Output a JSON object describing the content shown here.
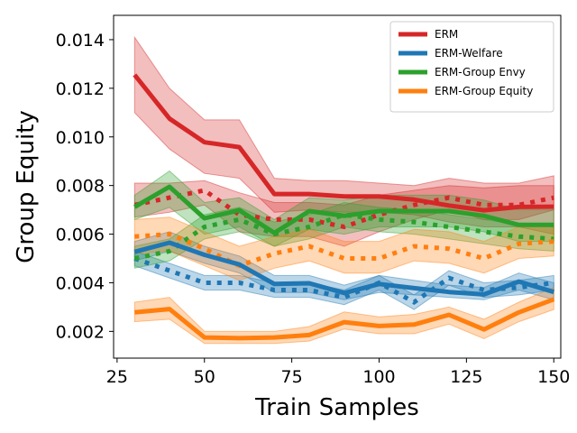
{
  "chart_data": {
    "type": "line",
    "xlabel": "Train Samples",
    "ylabel": "Group Equity",
    "xlim": [
      24,
      152
    ],
    "ylim": [
      0.0009,
      0.015
    ],
    "x_ticks": [
      25,
      50,
      75,
      100,
      125,
      150
    ],
    "x_tick_labels": [
      "25",
      "50",
      "75",
      "100",
      "125",
      "150"
    ],
    "y_ticks": [
      0.002,
      0.004,
      0.006,
      0.008,
      0.01,
      0.012,
      0.014
    ],
    "y_tick_labels": [
      "0.002",
      "0.004",
      "0.006",
      "0.008",
      "0.010",
      "0.012",
      "0.014"
    ],
    "grid": false,
    "legend_position": "top-right",
    "x": [
      30,
      40,
      50,
      60,
      70,
      80,
      90,
      100,
      110,
      120,
      130,
      140,
      150
    ],
    "series": [
      {
        "name": "ERM",
        "color": "#d62728",
        "solid": [
          0.01255,
          0.01075,
          0.00978,
          0.00958,
          0.00765,
          0.00765,
          0.00755,
          0.00755,
          0.00742,
          0.00718,
          0.00698,
          0.00712,
          0.00713
        ],
        "lower": [
          0.011,
          0.0095,
          0.0085,
          0.0083,
          0.0069,
          0.007,
          0.0069,
          0.0069,
          0.0068,
          0.0065,
          0.0063,
          0.0063,
          0.006
        ],
        "upper": [
          0.0141,
          0.012,
          0.0107,
          0.0107,
          0.0083,
          0.0082,
          0.0082,
          0.0081,
          0.008,
          0.0083,
          0.0081,
          0.0081,
          0.0084
        ],
        "dotted": [
          0.0072,
          0.0075,
          0.0078,
          0.0068,
          0.0066,
          0.0066,
          0.0063,
          0.0068,
          0.0072,
          0.0075,
          0.0072,
          0.0072,
          0.0075
        ],
        "dotted_lower": [
          0.0067,
          0.0069,
          0.0072,
          0.0061,
          0.0059,
          0.0059,
          0.0055,
          0.0061,
          0.0066,
          0.007,
          0.0066,
          0.0066,
          0.007
        ],
        "dotted_upper": [
          0.0081,
          0.0081,
          0.0082,
          0.0077,
          0.0073,
          0.0073,
          0.0072,
          0.0076,
          0.0078,
          0.008,
          0.0079,
          0.008,
          0.008
        ]
      },
      {
        "name": "ERM-Welfare",
        "color": "#1f77b4",
        "solid": [
          0.00527,
          0.00565,
          0.00515,
          0.00475,
          0.00395,
          0.00398,
          0.00358,
          0.00395,
          0.00378,
          0.00362,
          0.00352,
          0.00405,
          0.00362
        ],
        "lower": [
          0.0049,
          0.0053,
          0.0048,
          0.0044,
          0.0036,
          0.0036,
          0.0033,
          0.0036,
          0.0035,
          0.0034,
          0.0033,
          0.0037,
          0.0033
        ],
        "upper": [
          0.0057,
          0.0061,
          0.0055,
          0.0051,
          0.0043,
          0.0043,
          0.0039,
          0.0043,
          0.0041,
          0.0039,
          0.0038,
          0.0044,
          0.004
        ],
        "dotted": [
          0.005,
          0.0045,
          0.004,
          0.004,
          0.0037,
          0.0037,
          0.0034,
          0.004,
          0.0032,
          0.0042,
          0.0037,
          0.0038,
          0.004
        ],
        "dotted_lower": [
          0.0047,
          0.0042,
          0.0037,
          0.0037,
          0.0034,
          0.0034,
          0.0031,
          0.0037,
          0.0029,
          0.0039,
          0.0034,
          0.0035,
          0.0037
        ],
        "dotted_upper": [
          0.0053,
          0.0048,
          0.0043,
          0.0043,
          0.004,
          0.004,
          0.0037,
          0.0043,
          0.0035,
          0.0045,
          0.004,
          0.0041,
          0.0043
        ]
      },
      {
        "name": "ERM-Group Envy",
        "color": "#2ca02c",
        "solid": [
          0.00712,
          0.00795,
          0.00665,
          0.00698,
          0.00605,
          0.00695,
          0.00675,
          0.00695,
          0.00695,
          0.00695,
          0.00675,
          0.00638,
          0.00638
        ],
        "lower": [
          0.0066,
          0.0071,
          0.006,
          0.0063,
          0.0055,
          0.0062,
          0.006,
          0.0063,
          0.0063,
          0.0063,
          0.0061,
          0.0057,
          0.0057
        ],
        "upper": [
          0.0076,
          0.0086,
          0.0073,
          0.0075,
          0.0066,
          0.0075,
          0.0074,
          0.0076,
          0.0076,
          0.0076,
          0.0074,
          0.007,
          0.007
        ],
        "dotted": [
          0.005,
          0.0053,
          0.0063,
          0.0066,
          0.006,
          0.0063,
          0.0068,
          0.0066,
          0.0065,
          0.0063,
          0.0061,
          0.0059,
          0.0058
        ],
        "dotted_lower": [
          0.0046,
          0.0049,
          0.0058,
          0.0061,
          0.0055,
          0.0058,
          0.0063,
          0.0061,
          0.006,
          0.0058,
          0.0056,
          0.0054,
          0.0053
        ],
        "dotted_upper": [
          0.0055,
          0.0058,
          0.0068,
          0.0071,
          0.0065,
          0.0068,
          0.0073,
          0.0071,
          0.007,
          0.0068,
          0.0066,
          0.0064,
          0.0063
        ]
      },
      {
        "name": "ERM-Group Equity",
        "color": "#ff7f0e",
        "solid": [
          0.00278,
          0.00292,
          0.00175,
          0.00172,
          0.00175,
          0.00185,
          0.00238,
          0.00222,
          0.00228,
          0.00268,
          0.00208,
          0.00278,
          0.00332
        ],
        "lower": [
          0.0024,
          0.0025,
          0.0015,
          0.0015,
          0.0015,
          0.0016,
          0.0021,
          0.0019,
          0.0019,
          0.0023,
          0.0017,
          0.0024,
          0.0029
        ],
        "upper": [
          0.0032,
          0.0034,
          0.002,
          0.002,
          0.002,
          0.0022,
          0.0028,
          0.0026,
          0.0027,
          0.003,
          0.0025,
          0.0032,
          0.0038
        ],
        "dotted": [
          0.0059,
          0.006,
          0.0054,
          0.0047,
          0.0052,
          0.0055,
          0.005,
          0.005,
          0.0055,
          0.0054,
          0.005,
          0.0056,
          0.0057
        ],
        "dotted_lower": [
          0.0052,
          0.0053,
          0.0047,
          0.0041,
          0.0046,
          0.0049,
          0.0044,
          0.0044,
          0.0049,
          0.0048,
          0.0044,
          0.005,
          0.0051
        ],
        "dotted_upper": [
          0.0066,
          0.0067,
          0.0061,
          0.0055,
          0.0059,
          0.0062,
          0.0057,
          0.0057,
          0.0062,
          0.0061,
          0.0057,
          0.0063,
          0.0064
        ]
      }
    ]
  }
}
